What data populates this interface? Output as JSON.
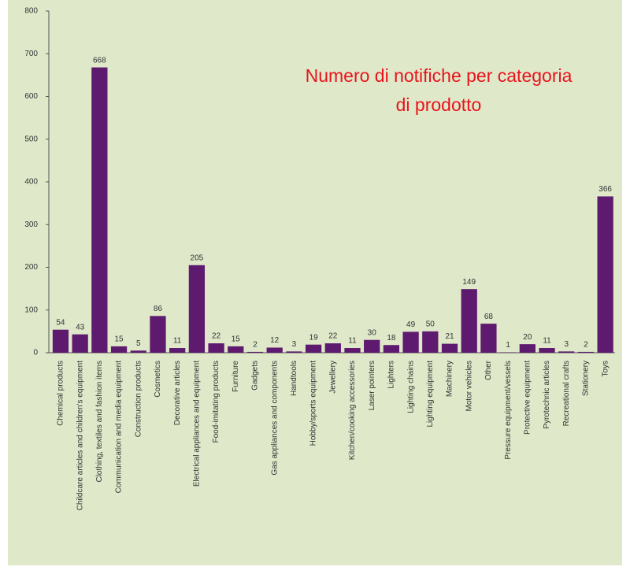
{
  "chart_data": {
    "type": "bar",
    "title": "Numero di notifiche per categoria di prodotto",
    "categories": [
      "Chemical products",
      "Childcare articles and children's equipment",
      "Clothing, textiles and fashion items",
      "Communication and media equipment",
      "Construction products",
      "Cosmetics",
      "Decorative articles",
      "Electrical appliances and equipment",
      "Food-imitating products",
      "Furniture",
      "Gadgets",
      "Gas appliances and components",
      "Handtools",
      "Hobby/sports equipment",
      "Jewellery",
      "Kitchen/cooking accessories",
      "Laser pointers",
      "Lighters",
      "Lighting chains",
      "Lighting equipment",
      "Machinery",
      "Motor vehicles",
      "Other",
      "Pressure equipment/vessels",
      "Protective equipment",
      "Pyrotechnic articles",
      "Recreational crafts",
      "Stationery",
      "Toys"
    ],
    "values": [
      54,
      43,
      668,
      15,
      5,
      86,
      11,
      205,
      22,
      15,
      2,
      12,
      3,
      19,
      22,
      11,
      30,
      18,
      49,
      50,
      21,
      149,
      68,
      1,
      20,
      11,
      3,
      2,
      366
    ],
    "color": "#5e1a6e",
    "ylim": [
      0,
      800
    ],
    "yticks": [
      0,
      100,
      200,
      300,
      400,
      500,
      600,
      700,
      800
    ],
    "grid": false
  }
}
